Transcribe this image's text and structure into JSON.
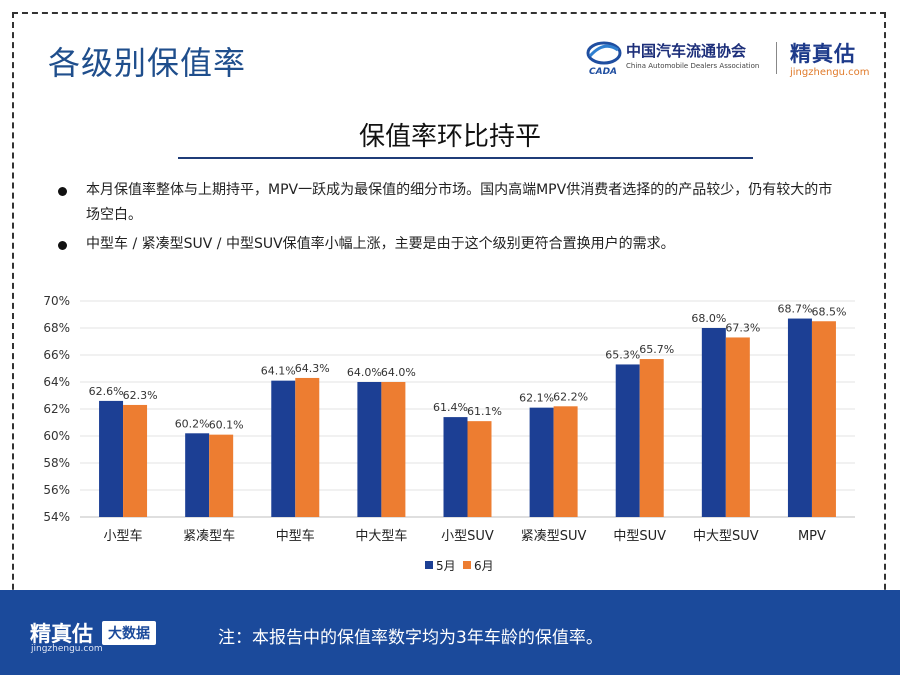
{
  "header": {
    "title": "各级别保值率",
    "logo_caada_cn": "中国汽车流通协会",
    "logo_caada_en": "China Automobile Dealers Association",
    "logo_caada_mark": "CADA",
    "logo_jz_cn": "精真估",
    "logo_jz_en": "jingzhengu.com"
  },
  "subtitle": "保值率环比持平",
  "bullets": [
    "本月保值率整体与上期持平，MPV一跃成为最保值的细分市场。国内高端MPV供消费者选择的的产品较少，仍有较大的市场空白。",
    "中型车 / 紧凑型SUV / 中型SUV保值率小幅上涨，主要是由于这个级别更符合置换用户的需求。"
  ],
  "chart_data": {
    "type": "bar",
    "categories": [
      "小型车",
      "紧凑型车",
      "中型车",
      "中大型车",
      "小型SUV",
      "紧凑型SUV",
      "中型SUV",
      "中大型SUV",
      "MPV"
    ],
    "series": [
      {
        "name": "5月",
        "values": [
          62.6,
          60.2,
          64.1,
          64.0,
          61.4,
          62.1,
          65.3,
          68.0,
          68.7
        ],
        "labels": [
          "62.6%",
          "60.2%",
          "64.1%",
          "64.0%",
          "61.4%",
          "62.1%",
          "65.3%",
          "68.0%",
          "68.7%"
        ],
        "color": "#1c3f94"
      },
      {
        "name": "6月",
        "values": [
          62.3,
          60.1,
          64.3,
          64.0,
          61.1,
          62.2,
          65.7,
          67.3,
          68.5
        ],
        "labels": [
          "62.3%",
          "60.1%",
          "64.3%",
          "64.0%",
          "61.1%",
          "62.2%",
          "65.7%",
          "67.3%",
          "68.5%"
        ],
        "color": "#ed7d31"
      }
    ],
    "ylim": [
      54,
      70
    ],
    "yticks": [
      54,
      56,
      58,
      60,
      62,
      64,
      66,
      68,
      70
    ],
    "ytick_labels": [
      "54%",
      "56%",
      "58%",
      "60%",
      "62%",
      "64%",
      "66%",
      "68%",
      "70%"
    ],
    "grid": true,
    "legend": "bottom-center"
  },
  "footer": {
    "logo_cn": "精真估",
    "logo_en": "jingzhengu.com",
    "badge": "大数据",
    "note": "注：本报告中的保值率数字均为3年车龄的保值率。"
  }
}
